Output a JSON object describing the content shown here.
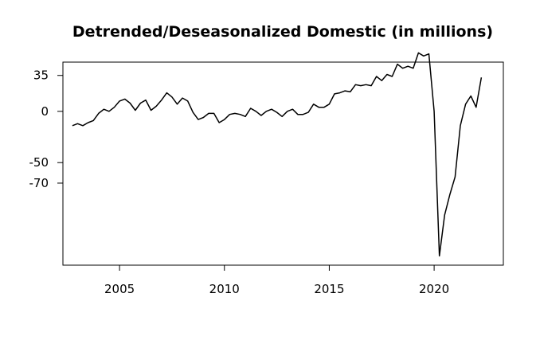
{
  "chart_data": {
    "type": "line",
    "title": "Detrended/Deseasonalized Domestic (in millions)",
    "xlabel": "",
    "ylabel": "",
    "x_ticks": [
      2005,
      2010,
      2015,
      2020
    ],
    "y_ticks": [
      35,
      0,
      -50,
      -70
    ],
    "y_tick_labels": [
      "35",
      "0",
      "-50",
      "-70"
    ],
    "xlim": [
      2002.3,
      2023.3
    ],
    "ylim": [
      -150,
      48
    ],
    "grid": false,
    "legend": "none",
    "line_color": "#000000",
    "series": [
      {
        "x": [
          2002.75,
          2003.0,
          2003.25,
          2003.5,
          2003.75,
          2004.0,
          2004.25,
          2004.5,
          2004.75,
          2005.0,
          2005.25,
          2005.5,
          2005.75,
          2006.0,
          2006.25,
          2006.5,
          2006.75,
          2007.0,
          2007.25,
          2007.5,
          2007.75,
          2008.0,
          2008.25,
          2008.5,
          2008.75,
          2009.0,
          2009.25,
          2009.5,
          2009.75,
          2010.0,
          2010.25,
          2010.5,
          2010.75,
          2011.0,
          2011.25,
          2011.5,
          2011.75,
          2012.0,
          2012.25,
          2012.5,
          2012.75,
          2013.0,
          2013.25,
          2013.5,
          2013.75,
          2014.0,
          2014.25,
          2014.5,
          2014.75,
          2015.0,
          2015.25,
          2015.5,
          2015.75,
          2016.0,
          2016.25,
          2016.5,
          2016.75,
          2017.0,
          2017.25,
          2017.5,
          2017.75,
          2018.0,
          2018.25,
          2018.5,
          2018.75,
          2019.0,
          2019.25,
          2019.5,
          2019.75,
          2020.0,
          2020.25,
          2020.5,
          2020.75,
          2021.0,
          2021.25,
          2021.5,
          2021.75,
          2022.0,
          2022.25
        ],
        "values": [
          -14,
          -12,
          -14,
          -11,
          -9,
          -2,
          2,
          0,
          4,
          10,
          12,
          8,
          1,
          8,
          11,
          1,
          5,
          11,
          18,
          14,
          7,
          13,
          10,
          -1,
          -8,
          -6,
          -2,
          -2,
          -11,
          -8,
          -3,
          -2,
          -3,
          -5,
          3,
          0,
          -4,
          0,
          2,
          -1,
          -5,
          0,
          2,
          -3,
          -3,
          -1,
          7,
          4,
          4,
          7,
          17,
          18,
          20,
          19,
          26,
          25,
          26,
          25,
          34,
          30,
          36,
          34,
          46,
          42,
          44,
          42,
          57,
          54,
          56,
          0,
          -141,
          -101,
          -81,
          -64,
          -14,
          7,
          15,
          4,
          33
        ]
      }
    ]
  }
}
